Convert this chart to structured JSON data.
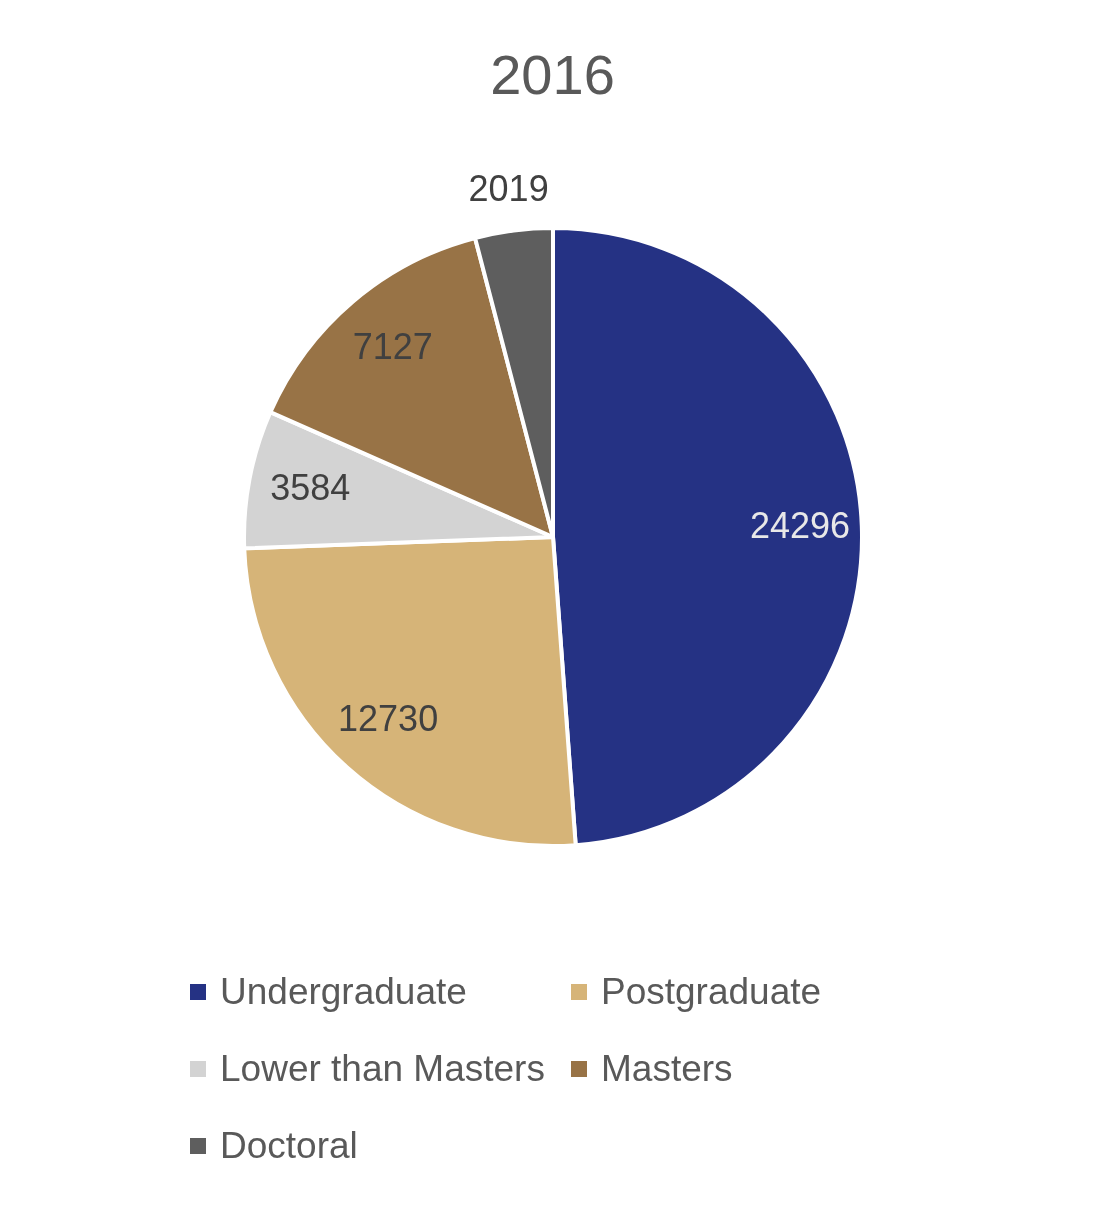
{
  "chart_data": {
    "type": "pie",
    "title": "2016",
    "categories": [
      "Undergraduate",
      "Postgraduate",
      "Lower than Masters",
      "Masters",
      "Doctoral"
    ],
    "values": [
      24296,
      12730,
      3584,
      7127,
      2019
    ],
    "colors": [
      "#253284",
      "#d6b478",
      "#d3d3d3",
      "#987346",
      "#5e5e5e"
    ],
    "data_labels": true,
    "legend": "bottom"
  }
}
